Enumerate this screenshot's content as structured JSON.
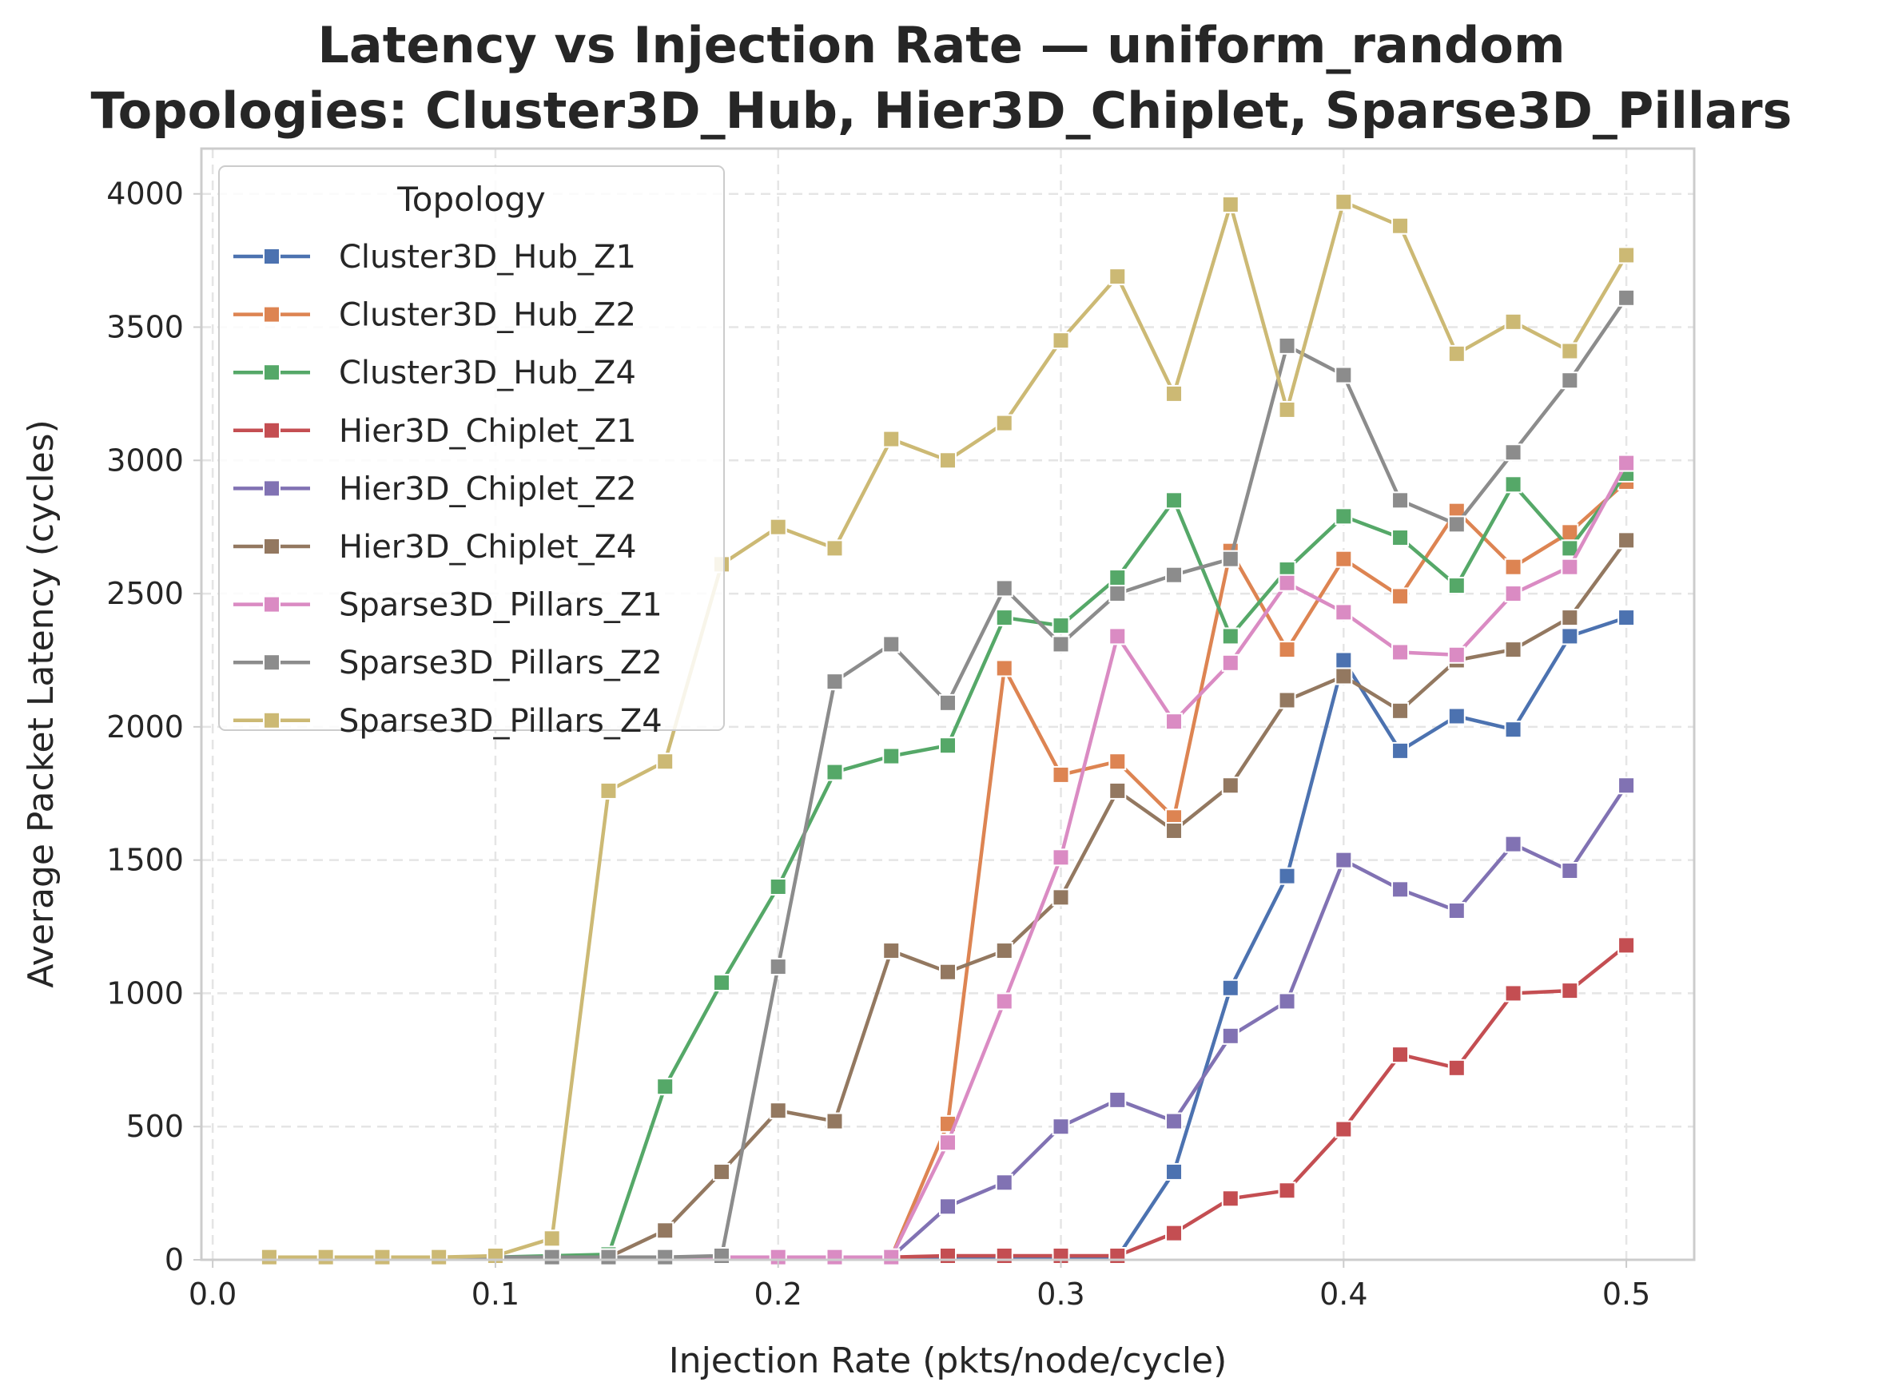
{
  "chart_data": {
    "type": "line",
    "title": "Latency vs Injection Rate — uniform_random",
    "subtitle": "Topologies: Cluster3D_Hub, Hier3D_Chiplet, Sparse3D_Pillars",
    "xlabel": "Injection Rate (pkts/node/cycle)",
    "ylabel": "Average Packet Latency (cycles)",
    "xlim": [
      -0.004,
      0.524
    ],
    "ylim": [
      0,
      4170
    ],
    "xticks": [
      0.0,
      0.1,
      0.2,
      0.3,
      0.4,
      0.5
    ],
    "xtick_labels": [
      "0.0",
      "0.1",
      "0.2",
      "0.3",
      "0.4",
      "0.5"
    ],
    "yticks": [
      0,
      500,
      1000,
      1500,
      2000,
      2500,
      3000,
      3500,
      4000
    ],
    "ytick_labels": [
      "0",
      "500",
      "1000",
      "1500",
      "2000",
      "2500",
      "3000",
      "3500",
      "4000"
    ],
    "grid": true,
    "legend_title": "Topology",
    "legend_position": "upper-left",
    "x": [
      0.02,
      0.04,
      0.06,
      0.08,
      0.1,
      0.12,
      0.14,
      0.16,
      0.18,
      0.2,
      0.22,
      0.24,
      0.26,
      0.28,
      0.3,
      0.32,
      0.34,
      0.36,
      0.38,
      0.4,
      0.42,
      0.44,
      0.46,
      0.48,
      0.5
    ],
    "series": [
      {
        "name": "Cluster3D_Hub_Z1",
        "color": "#4c72b0",
        "values": [
          10,
          10,
          10,
          10,
          10,
          10,
          10,
          10,
          10,
          10,
          10,
          10,
          10,
          10,
          10,
          10,
          330,
          1020,
          1440,
          2250,
          1910,
          2040,
          1990,
          2340,
          2410
        ]
      },
      {
        "name": "Cluster3D_Hub_Z2",
        "color": "#dd8452",
        "values": [
          10,
          10,
          10,
          10,
          10,
          10,
          10,
          10,
          10,
          10,
          10,
          10,
          510,
          2220,
          1820,
          1870,
          1660,
          2660,
          2290,
          2630,
          2490,
          2810,
          2600,
          2730,
          2920
        ]
      },
      {
        "name": "Cluster3D_Hub_Z4",
        "color": "#55a868",
        "values": [
          10,
          10,
          10,
          10,
          10,
          15,
          20,
          650,
          1040,
          1400,
          1830,
          1890,
          1930,
          2410,
          2380,
          2560,
          2850,
          2340,
          2590,
          2790,
          2710,
          2530,
          2910,
          2670,
          2950
        ]
      },
      {
        "name": "Hier3D_Chiplet_Z1",
        "color": "#c44e52",
        "values": [
          10,
          10,
          10,
          10,
          10,
          10,
          10,
          10,
          10,
          10,
          10,
          10,
          15,
          15,
          15,
          15,
          100,
          230,
          260,
          490,
          770,
          720,
          1000,
          1010,
          1180
        ]
      },
      {
        "name": "Hier3D_Chiplet_Z2",
        "color": "#8172b3",
        "values": [
          10,
          10,
          10,
          10,
          10,
          10,
          10,
          10,
          10,
          10,
          10,
          10,
          200,
          290,
          500,
          600,
          520,
          840,
          970,
          1500,
          1390,
          1310,
          1560,
          1460,
          1780
        ]
      },
      {
        "name": "Hier3D_Chiplet_Z4",
        "color": "#937860",
        "values": [
          10,
          10,
          10,
          10,
          10,
          10,
          10,
          110,
          330,
          560,
          520,
          1160,
          1080,
          1160,
          1360,
          1760,
          1610,
          1780,
          2100,
          2190,
          2060,
          2250,
          2290,
          2410,
          2700
        ]
      },
      {
        "name": "Sparse3D_Pillars_Z1",
        "color": "#da8bc3",
        "values": [
          10,
          10,
          10,
          10,
          10,
          10,
          10,
          10,
          10,
          10,
          10,
          10,
          440,
          970,
          1510,
          2340,
          2020,
          2240,
          2540,
          2430,
          2280,
          2270,
          2500,
          2600,
          2990
        ]
      },
      {
        "name": "Sparse3D_Pillars_Z2",
        "color": "#8c8c8c",
        "values": [
          10,
          10,
          10,
          10,
          10,
          10,
          10,
          10,
          15,
          1100,
          2170,
          2310,
          2090,
          2520,
          2310,
          2500,
          2570,
          2630,
          3430,
          3320,
          2850,
          2760,
          3030,
          3300,
          3610
        ]
      },
      {
        "name": "Sparse3D_Pillars_Z4",
        "color": "#ccb974",
        "values": [
          10,
          10,
          10,
          10,
          15,
          80,
          1760,
          1870,
          2610,
          2750,
          2670,
          3080,
          3000,
          3140,
          3450,
          3690,
          3250,
          3960,
          3190,
          3970,
          3880,
          3400,
          3520,
          3410,
          3770
        ]
      }
    ]
  }
}
